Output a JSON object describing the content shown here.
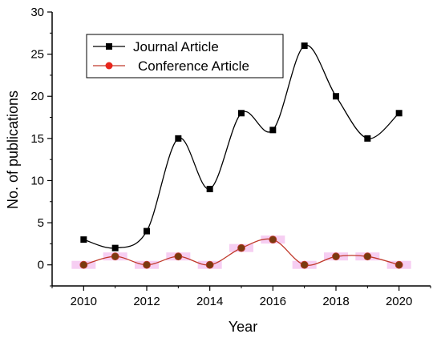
{
  "chart_data": {
    "type": "line",
    "xlabel": "Year",
    "ylabel": "No. of publications",
    "xlim": [
      2009,
      2021
    ],
    "ylim": [
      -2.5,
      30
    ],
    "x_ticks": [
      2010,
      2012,
      2014,
      2016,
      2018,
      2020
    ],
    "y_ticks": [
      0,
      5,
      10,
      15,
      20,
      25,
      30
    ],
    "x": [
      2010,
      2011,
      2012,
      2013,
      2014,
      2015,
      2016,
      2017,
      2018,
      2019,
      2020
    ],
    "series": [
      {
        "name": "Journal Article",
        "values": [
          3,
          2,
          4,
          15,
          9,
          18,
          16,
          26,
          20,
          15,
          18
        ],
        "line_color": "#000000",
        "marker": "square",
        "marker_color": "#000000"
      },
      {
        "name": "Conference Article",
        "values": [
          0,
          1,
          0,
          1,
          0,
          2,
          3,
          0,
          1,
          1,
          0
        ],
        "line_color": "#c0392b",
        "marker": "circle",
        "marker_color": "#7a3a10",
        "highlight_color": "#f4c6f0"
      }
    ],
    "legend_position": "top-left",
    "grid": false,
    "smooth": true
  }
}
